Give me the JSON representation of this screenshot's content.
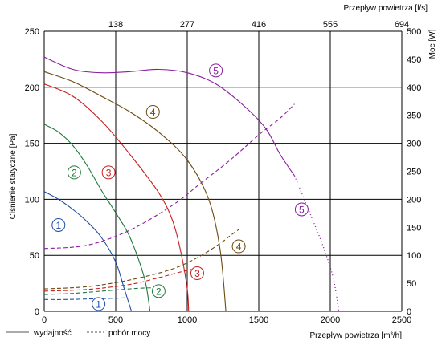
{
  "chart_data": {
    "type": "line",
    "x_bottom": {
      "label": "Przepływ powietrza [m³/h]",
      "range": [
        0,
        2500
      ],
      "ticks": [
        "0",
        "500",
        "1000",
        "1500",
        "2000",
        "2500"
      ],
      "tick_values": [
        0,
        500,
        1000,
        1500,
        2000,
        2500
      ]
    },
    "x_top": {
      "label": "Przepływ powietrza [l/s]",
      "ticks": [
        "138",
        "277",
        "416",
        "555",
        "694"
      ],
      "tick_values": [
        500,
        1000,
        1500,
        2000,
        2500
      ]
    },
    "y_left": {
      "label": "Ciśnienie statyczne [Pa]",
      "range": [
        0,
        250
      ],
      "ticks": [
        "0",
        "50",
        "100",
        "150",
        "200",
        "250"
      ],
      "tick_values": [
        0,
        50,
        100,
        150,
        200,
        250
      ]
    },
    "y_right": {
      "label": "Moc [W]",
      "range": [
        0,
        500
      ],
      "ticks": [
        "0",
        "50",
        "100",
        "150",
        "200",
        "250",
        "300",
        "350",
        "400",
        "450",
        "500"
      ],
      "tick_values": [
        0,
        50,
        100,
        150,
        200,
        250,
        300,
        350,
        400,
        450,
        500
      ]
    },
    "grid": true,
    "legend": {
      "position": "bottom-left",
      "items": [
        {
          "label": "wydajność",
          "style": "solid"
        },
        {
          "label": "pobór mocy",
          "style": "dashed"
        }
      ]
    },
    "series": [
      {
        "name": "1",
        "color": "#1f4fa8",
        "pressure": [
          [
            0,
            107
          ],
          [
            100,
            100
          ],
          [
            200,
            91
          ],
          [
            300,
            80
          ],
          [
            400,
            66
          ],
          [
            500,
            44
          ],
          [
            560,
            20
          ],
          [
            610,
            0
          ]
        ],
        "power": [
          [
            0,
            21
          ],
          [
            150,
            21
          ],
          [
            300,
            22
          ],
          [
            450,
            23
          ],
          [
            580,
            24
          ]
        ],
        "pressure_marker": [
          100,
          77
        ],
        "power_marker": [
          380,
          13
        ]
      },
      {
        "name": "2",
        "color": "#1e7a3c",
        "pressure": [
          [
            0,
            167
          ],
          [
            100,
            160
          ],
          [
            200,
            148
          ],
          [
            300,
            130
          ],
          [
            400,
            108
          ],
          [
            500,
            88
          ],
          [
            600,
            66
          ],
          [
            700,
            30
          ],
          [
            740,
            0
          ]
        ],
        "power": [
          [
            0,
            30
          ],
          [
            200,
            32
          ],
          [
            400,
            36
          ],
          [
            550,
            39
          ],
          [
            650,
            41
          ],
          [
            760,
            42
          ],
          [
            820,
            42
          ]
        ],
        "pressure_marker": [
          210,
          124
        ],
        "power_marker": [
          800,
          36
        ]
      },
      {
        "name": "3",
        "color": "#c81e1e",
        "pressure": [
          [
            0,
            203
          ],
          [
            200,
            192
          ],
          [
            400,
            170
          ],
          [
            600,
            140
          ],
          [
            800,
            106
          ],
          [
            900,
            80
          ],
          [
            960,
            50
          ],
          [
            1000,
            20
          ],
          [
            1010,
            0
          ]
        ],
        "power": [
          [
            0,
            36
          ],
          [
            300,
            39
          ],
          [
            600,
            48
          ],
          [
            800,
            60
          ],
          [
            950,
            70
          ],
          [
            1000,
            73
          ],
          [
            1030,
            75
          ]
        ],
        "pressure_marker": [
          450,
          124
        ],
        "power_marker": [
          1070,
          68
        ]
      },
      {
        "name": "4",
        "color": "#6b4a10",
        "pressure": [
          [
            0,
            214
          ],
          [
            200,
            205
          ],
          [
            400,
            192
          ],
          [
            600,
            178
          ],
          [
            800,
            160
          ],
          [
            1000,
            135
          ],
          [
            1150,
            100
          ],
          [
            1230,
            55
          ],
          [
            1270,
            0
          ]
        ],
        "power": [
          [
            0,
            40
          ],
          [
            300,
            44
          ],
          [
            600,
            56
          ],
          [
            900,
            76
          ],
          [
            1100,
            100
          ],
          [
            1250,
            125
          ],
          [
            1300,
            135
          ],
          [
            1360,
            146
          ]
        ],
        "pressure_marker": [
          760,
          178
        ],
        "power_marker": [
          1360,
          116
        ]
      },
      {
        "name": "5",
        "color": "#8a1e9e",
        "pressure": [
          [
            0,
            227
          ],
          [
            200,
            216
          ],
          [
            400,
            213
          ],
          [
            600,
            214
          ],
          [
            800,
            216
          ],
          [
            1000,
            213
          ],
          [
            1200,
            203
          ],
          [
            1400,
            183
          ],
          [
            1550,
            163
          ],
          [
            1650,
            140
          ],
          [
            1750,
            121
          ]
        ],
        "pressure_extension": [
          [
            1750,
            121
          ],
          [
            1850,
            90
          ],
          [
            1950,
            58
          ],
          [
            2020,
            30
          ],
          [
            2060,
            0
          ]
        ],
        "power": [
          [
            0,
            112
          ],
          [
            300,
            118
          ],
          [
            600,
            145
          ],
          [
            900,
            190
          ],
          [
            1100,
            230
          ],
          [
            1300,
            270
          ],
          [
            1500,
            315
          ],
          [
            1650,
            345
          ],
          [
            1750,
            370
          ]
        ],
        "pressure_marker": [
          1200,
          215
        ],
        "power_marker": [
          1800,
          182
        ]
      }
    ]
  }
}
